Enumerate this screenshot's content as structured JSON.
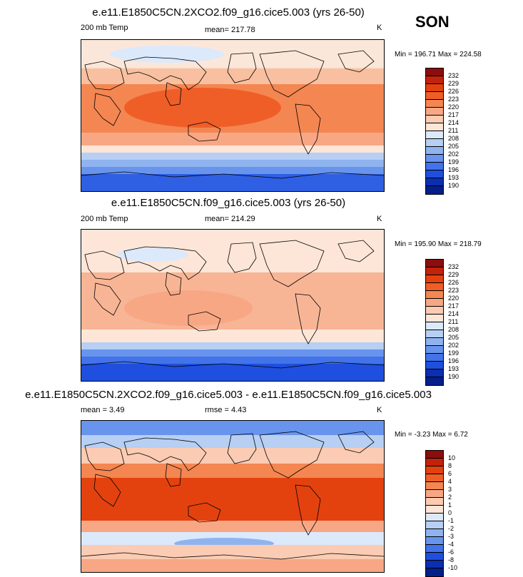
{
  "season": "SON",
  "units_label": "K",
  "chart_data": [
    {
      "type": "heatmap",
      "title": "e.e11.E1850C5CN.2XCO2.f09_g16.cice5.003 (yrs 26-50)",
      "variable": "200 mb Temp",
      "stats": [
        {
          "label": "mean= 217.78"
        }
      ],
      "min_max": "Min = 196.71 Max = 224.58",
      "units": "K",
      "levels": [
        "232",
        "229",
        "226",
        "223",
        "220",
        "217",
        "214",
        "211",
        "208",
        "205",
        "202",
        "199",
        "196",
        "193",
        "190"
      ],
      "colors": [
        "#8c0d0d",
        "#c3220c",
        "#e3420f",
        "#f05e28",
        "#f48652",
        "#f8a785",
        "#fbcbb3",
        "#fde6d7",
        "#dbe9fb",
        "#b6cff3",
        "#8fb3ef",
        "#6894ed",
        "#4373ea",
        "#1f4fde",
        "#0b2fb0",
        "#041e8a"
      ]
    },
    {
      "type": "heatmap",
      "title": "e.e11.E1850C5CN.f09_g16.cice5.003 (yrs 26-50)",
      "variable": "200 mb Temp",
      "stats": [
        {
          "label": "mean= 214.29"
        }
      ],
      "min_max": "Min = 195.90 Max = 218.79",
      "units": "K",
      "levels": [
        "232",
        "229",
        "226",
        "223",
        "220",
        "217",
        "214",
        "211",
        "208",
        "205",
        "202",
        "199",
        "196",
        "193",
        "190"
      ],
      "colors": [
        "#8c0d0d",
        "#c3220c",
        "#e3420f",
        "#f05e28",
        "#f48652",
        "#f8a785",
        "#fbcbb3",
        "#fde6d7",
        "#dbe9fb",
        "#b6cff3",
        "#8fb3ef",
        "#6894ed",
        "#4373ea",
        "#1f4fde",
        "#0b2fb0",
        "#041e8a"
      ]
    },
    {
      "type": "heatmap",
      "title": "e.e11.E1850C5CN.2XCO2.f09_g16.cice5.003 - e.e11.E1850C5CN.f09_g16.cice5.003",
      "variable": "",
      "stats": [
        {
          "label": "mean =  3.49"
        },
        {
          "label": "rmse =  4.43"
        }
      ],
      "min_max": "Min =  -3.23 Max =   6.72",
      "units": "K",
      "levels": [
        "10",
        "8",
        "6",
        "4",
        "3",
        "2",
        "1",
        "0",
        "-1",
        "-2",
        "-3",
        "-4",
        "-6",
        "-8",
        "-10"
      ],
      "colors": [
        "#8c0d0d",
        "#c3220c",
        "#e3420f",
        "#f05e28",
        "#f48652",
        "#f8a785",
        "#fbcbb3",
        "#fde6d7",
        "#dbe9fb",
        "#b6cff3",
        "#8fb3ef",
        "#6894ed",
        "#4373ea",
        "#1f4fde",
        "#0b2fb0",
        "#041e8a"
      ]
    }
  ]
}
